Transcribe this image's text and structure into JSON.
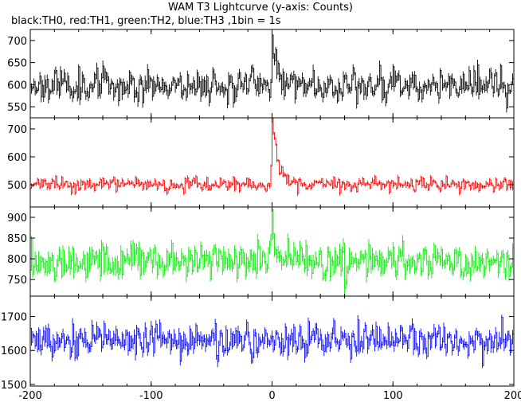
{
  "title": "WAM T3 Lightcurve (y-axis: Counts)",
  "subtitle": "black:TH0, red:TH1, green:TH2, blue:TH3 ,1bin = 1s",
  "chart_data": {
    "type": "line",
    "x_range": [
      -200,
      200
    ],
    "x_ticks": [
      -200,
      -100,
      0,
      100,
      200
    ],
    "x_tick_labels": [
      "-200",
      "-100",
      "0",
      "100",
      "200"
    ],
    "x_step": 1,
    "grid": false,
    "legend": "none",
    "panels": [
      {
        "series": "TH0",
        "color": "#000000",
        "ylim": [
          525,
          725
        ],
        "yticks": [
          550,
          600,
          650,
          700
        ],
        "ytick_labels": [
          "550",
          "600",
          "650",
          "700"
        ],
        "baseline": 600,
        "amplitude": 32,
        "seed": 11,
        "peak": {
          "x": 0,
          "value": 720,
          "width": 3
        }
      },
      {
        "series": "TH1",
        "color": "#ff0000",
        "ylim": [
          420,
          740
        ],
        "yticks": [
          500,
          600,
          700
        ],
        "ytick_labels": [
          "500",
          "600",
          "700"
        ],
        "baseline": 500,
        "amplitude": 22,
        "seed": 23,
        "peak": {
          "x": 0,
          "value": 735,
          "width": 5
        }
      },
      {
        "series": "TH2",
        "color": "#00ee00",
        "ylim": [
          710,
          925
        ],
        "yticks": [
          750,
          800,
          850,
          900
        ],
        "ytick_labels": [
          "750",
          "800",
          "850",
          "900"
        ],
        "baseline": 795,
        "amplitude": 38,
        "seed": 37,
        "peak": {
          "x": 0,
          "value": 920,
          "width": 2
        }
      },
      {
        "series": "TH3",
        "color": "#0000ff",
        "ylim": [
          1495,
          1760
        ],
        "yticks": [
          1500,
          1600,
          1700
        ],
        "ytick_labels": [
          "1500",
          "1600",
          "1700"
        ],
        "baseline": 1630,
        "amplitude": 45,
        "seed": 53,
        "peak": null
      }
    ]
  }
}
